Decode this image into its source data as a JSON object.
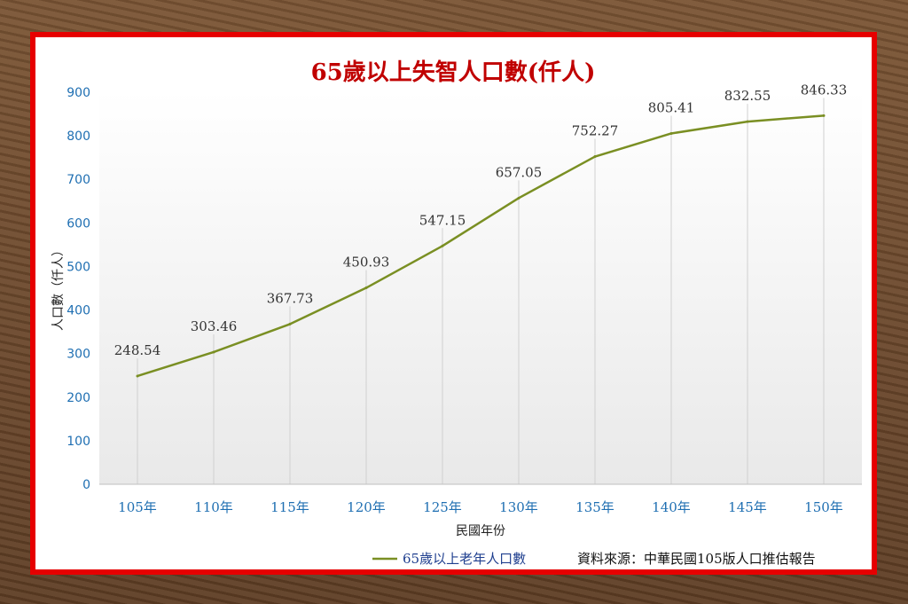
{
  "chart_data": {
    "type": "line",
    "title": "65歲以上失智人口數(仟人)",
    "xlabel": "民國年份",
    "ylabel": "人口數（仟人）",
    "categories": [
      "105年",
      "110年",
      "115年",
      "120年",
      "125年",
      "130年",
      "135年",
      "140年",
      "145年",
      "150年"
    ],
    "series": [
      {
        "name": "65歲以上老年人口數",
        "values": [
          248.54,
          303.46,
          367.73,
          450.93,
          547.15,
          657.05,
          752.27,
          805.41,
          832.55,
          846.33
        ],
        "labels": [
          "248.54",
          "303.46",
          "367.73",
          "450.93",
          "547.15",
          "657.05",
          "752.27",
          "805.41",
          "832.55",
          "846.33"
        ],
        "color": "#7a8f23"
      }
    ],
    "ylim": [
      0,
      900
    ],
    "yticks": [
      "0",
      "100",
      "200",
      "300",
      "400",
      "500",
      "600",
      "700",
      "800",
      "900"
    ],
    "grid": true,
    "legend_position": "bottom"
  },
  "source": "資料來源：中華民國105版人口推估報告",
  "colors": {
    "frame": "#e60000",
    "line": "#7a8f23",
    "tick": "#1f6fb2",
    "title": "#c00000"
  }
}
